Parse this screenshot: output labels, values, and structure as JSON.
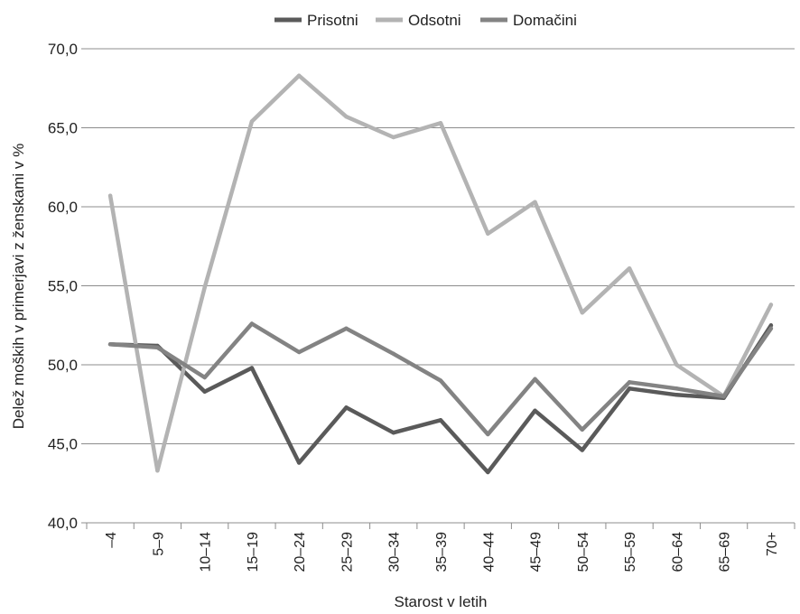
{
  "chart_data": {
    "type": "line",
    "title": "",
    "xlabel": "Starost v letih",
    "ylabel": "Delež moških v primerjavi z ženskami v %",
    "ylim": [
      40,
      70
    ],
    "yticks": [
      "40,0",
      "45,0",
      "50,0",
      "55,0",
      "60,0",
      "65,0",
      "70,0"
    ],
    "ytick_values": [
      40,
      45,
      50,
      55,
      60,
      65,
      70
    ],
    "grid": "horizontal",
    "legend_position": "top",
    "categories": [
      "–4",
      "5–9",
      "10–14",
      "15–19",
      "20–24",
      "25–29",
      "30–34",
      "35–39",
      "40–44",
      "45–49",
      "50–54",
      "55–59",
      "60–64",
      "65–69",
      "70+"
    ],
    "series": [
      {
        "name": "Prisotni",
        "color": "#5a5a5a",
        "values": [
          51.3,
          51.2,
          48.3,
          49.8,
          43.8,
          47.3,
          45.7,
          46.5,
          43.2,
          47.1,
          44.6,
          48.5,
          48.1,
          47.9,
          52.5
        ]
      },
      {
        "name": "Odsotni",
        "color": "#b3b3b3",
        "values": [
          60.7,
          43.3,
          54.9,
          65.4,
          68.3,
          65.7,
          64.4,
          65.3,
          58.3,
          60.3,
          53.3,
          56.1,
          50.0,
          48.0,
          53.8
        ]
      },
      {
        "name": "Domačini",
        "color": "#838383",
        "values": [
          51.3,
          51.1,
          49.2,
          52.6,
          50.8,
          52.3,
          50.7,
          49.0,
          45.6,
          49.1,
          45.9,
          48.9,
          48.5,
          48.0,
          52.3
        ]
      }
    ]
  }
}
